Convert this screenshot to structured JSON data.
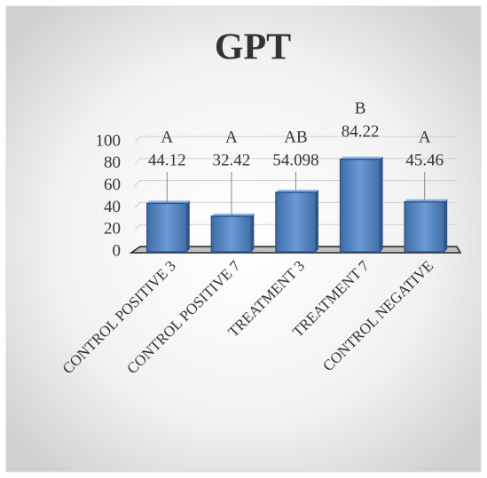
{
  "chart_data": {
    "type": "bar",
    "title": "GPT",
    "categories": [
      "CONTROL POSITIVE 3",
      "CONTROL POSITIVE 7",
      "TREATMENT 3",
      "TREATMENT 7",
      "CONTROL NEGATIVE"
    ],
    "values": [
      44.12,
      32.42,
      54.098,
      84.22,
      45.46
    ],
    "group_labels": [
      "A",
      "A",
      "AB",
      "B",
      "A"
    ],
    "color": "#4f81bd",
    "ylim": [
      0,
      100
    ],
    "yticks": [
      0,
      20,
      40,
      60,
      80,
      100
    ],
    "grid": true
  }
}
